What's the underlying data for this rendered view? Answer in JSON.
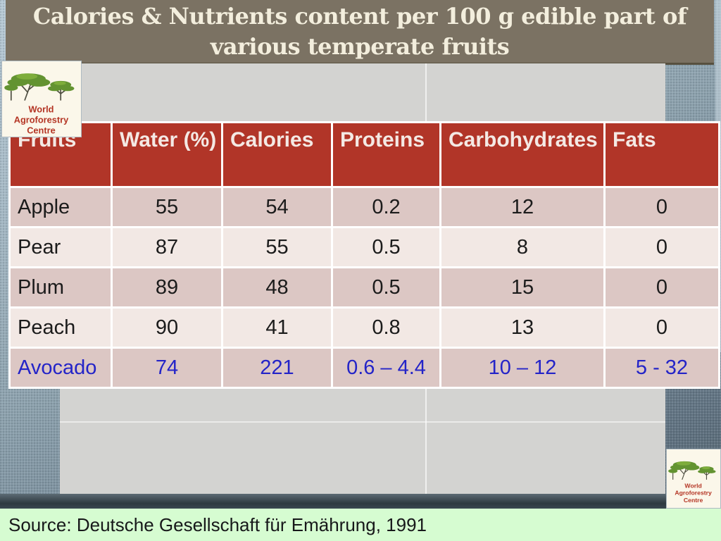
{
  "slide": {
    "title": "Calories & Nutrients content per 100 g edible part of various temperate fruits",
    "source": "Source: Deutsche Gesellschaft für Emährung, 1991"
  },
  "logo": {
    "lines": [
      "World",
      "Agroforestry",
      "Centre"
    ]
  },
  "table": {
    "columns": [
      "Fruits",
      "Water (%)",
      "Calories",
      "Proteins",
      "Carbohydrates",
      "Fats"
    ],
    "rows": [
      {
        "fruit": "Apple",
        "values": [
          "55",
          "54",
          "0.2",
          "12",
          "0"
        ],
        "highlight": false
      },
      {
        "fruit": "Pear",
        "values": [
          "87",
          "55",
          "0.5",
          "8",
          "0"
        ],
        "highlight": false
      },
      {
        "fruit": "Plum",
        "values": [
          "89",
          "48",
          "0.5",
          "15",
          "0"
        ],
        "highlight": false
      },
      {
        "fruit": "Peach",
        "values": [
          "90",
          "41",
          "0.8",
          "13",
          "0"
        ],
        "highlight": false
      },
      {
        "fruit": "Avocado",
        "values": [
          "74",
          "221",
          "0.6 – 4.4",
          "10 – 12",
          "5 - 32"
        ],
        "highlight": true
      }
    ]
  },
  "colors": {
    "title_bar_bg": "#7b7263",
    "title_text": "#f3eedd",
    "header_bg": "#b13528",
    "header_text": "#f4e9e4",
    "row_dark": "#dcc7c4",
    "row_light": "#f2e8e4",
    "highlight_text": "#2424c8",
    "panel_bg": "#d3d3d1",
    "source_bg": "#d6fcd1",
    "background_top": "#b8cad6",
    "background_bottom": "#4f606c"
  }
}
